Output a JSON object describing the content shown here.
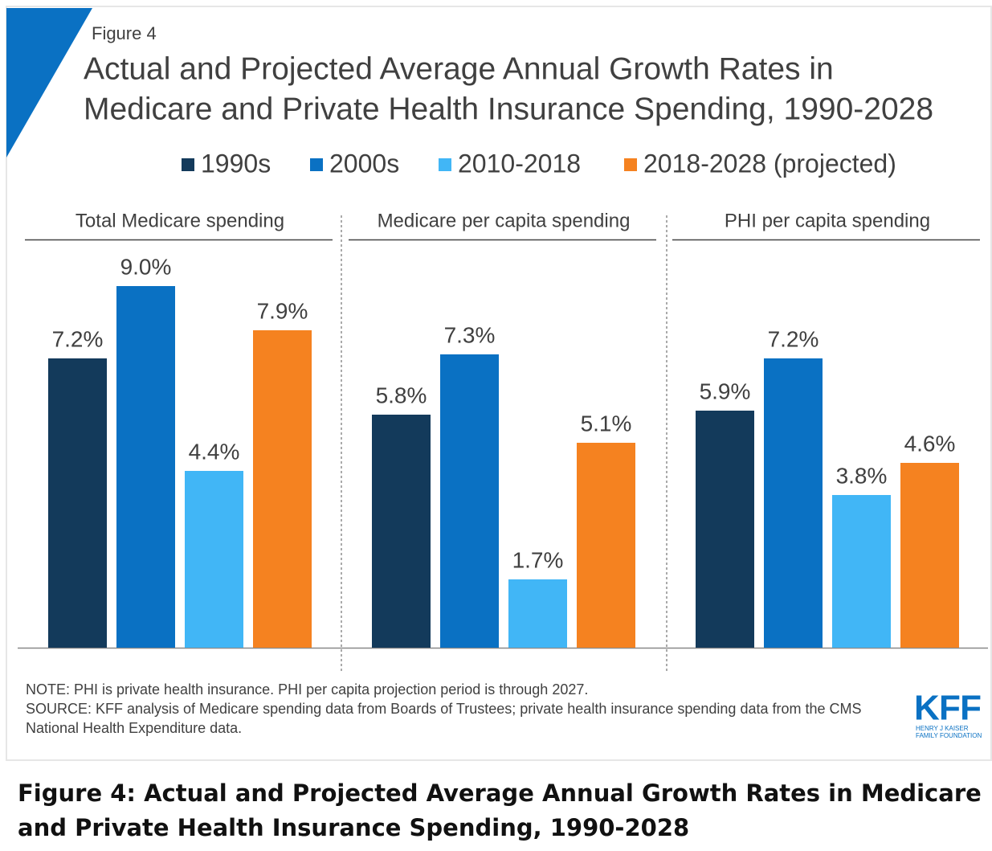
{
  "chart_data": {
    "type": "bar",
    "figure_label": "Figure 4",
    "title": [
      "Actual and Projected Average Annual Growth Rates in",
      "Medicare and Private Health Insurance Spending, 1990-2028"
    ],
    "categories": [
      "Total Medicare spending",
      "Medicare per capita spending",
      "PHI per capita spending"
    ],
    "series": [
      {
        "name": "1990s",
        "color": "#133a5b",
        "values": [
          7.2,
          5.8,
          5.9
        ],
        "value_labels": [
          "7.2%",
          "5.8%",
          "5.9%"
        ]
      },
      {
        "name": "2000s",
        "color": "#0a71c3",
        "values": [
          9.0,
          7.3,
          7.2
        ],
        "value_labels": [
          "9.0%",
          "7.3%",
          "7.2%"
        ]
      },
      {
        "name": "2010-2018",
        "color": "#41b6f6",
        "values": [
          4.4,
          1.7,
          3.8
        ],
        "value_labels": [
          "4.4%",
          "1.7%",
          "3.8%"
        ]
      },
      {
        "name": "2018-2028 (projected)",
        "color": "#f58220",
        "values": [
          7.9,
          5.1,
          4.6
        ],
        "value_labels": [
          "7.9%",
          "5.1%",
          "4.6%"
        ]
      }
    ],
    "note": "NOTE: PHI is private health insurance. PHI per capita projection period is through 2027.",
    "source": "SOURCE: KFF analysis of Medicare spending data from Boards of Trustees; private health insurance spending data from the CMS National Health Expenditure data.",
    "logo": {
      "text": "KFF",
      "subtitle": [
        "HENRY J KAISER",
        "FAMILY FOUNDATION"
      ]
    }
  },
  "caption": "Figure 4: Actual and Projected Average Annual Growth Rates in Medicare and Private Health Insurance Spending, 1990-2028"
}
